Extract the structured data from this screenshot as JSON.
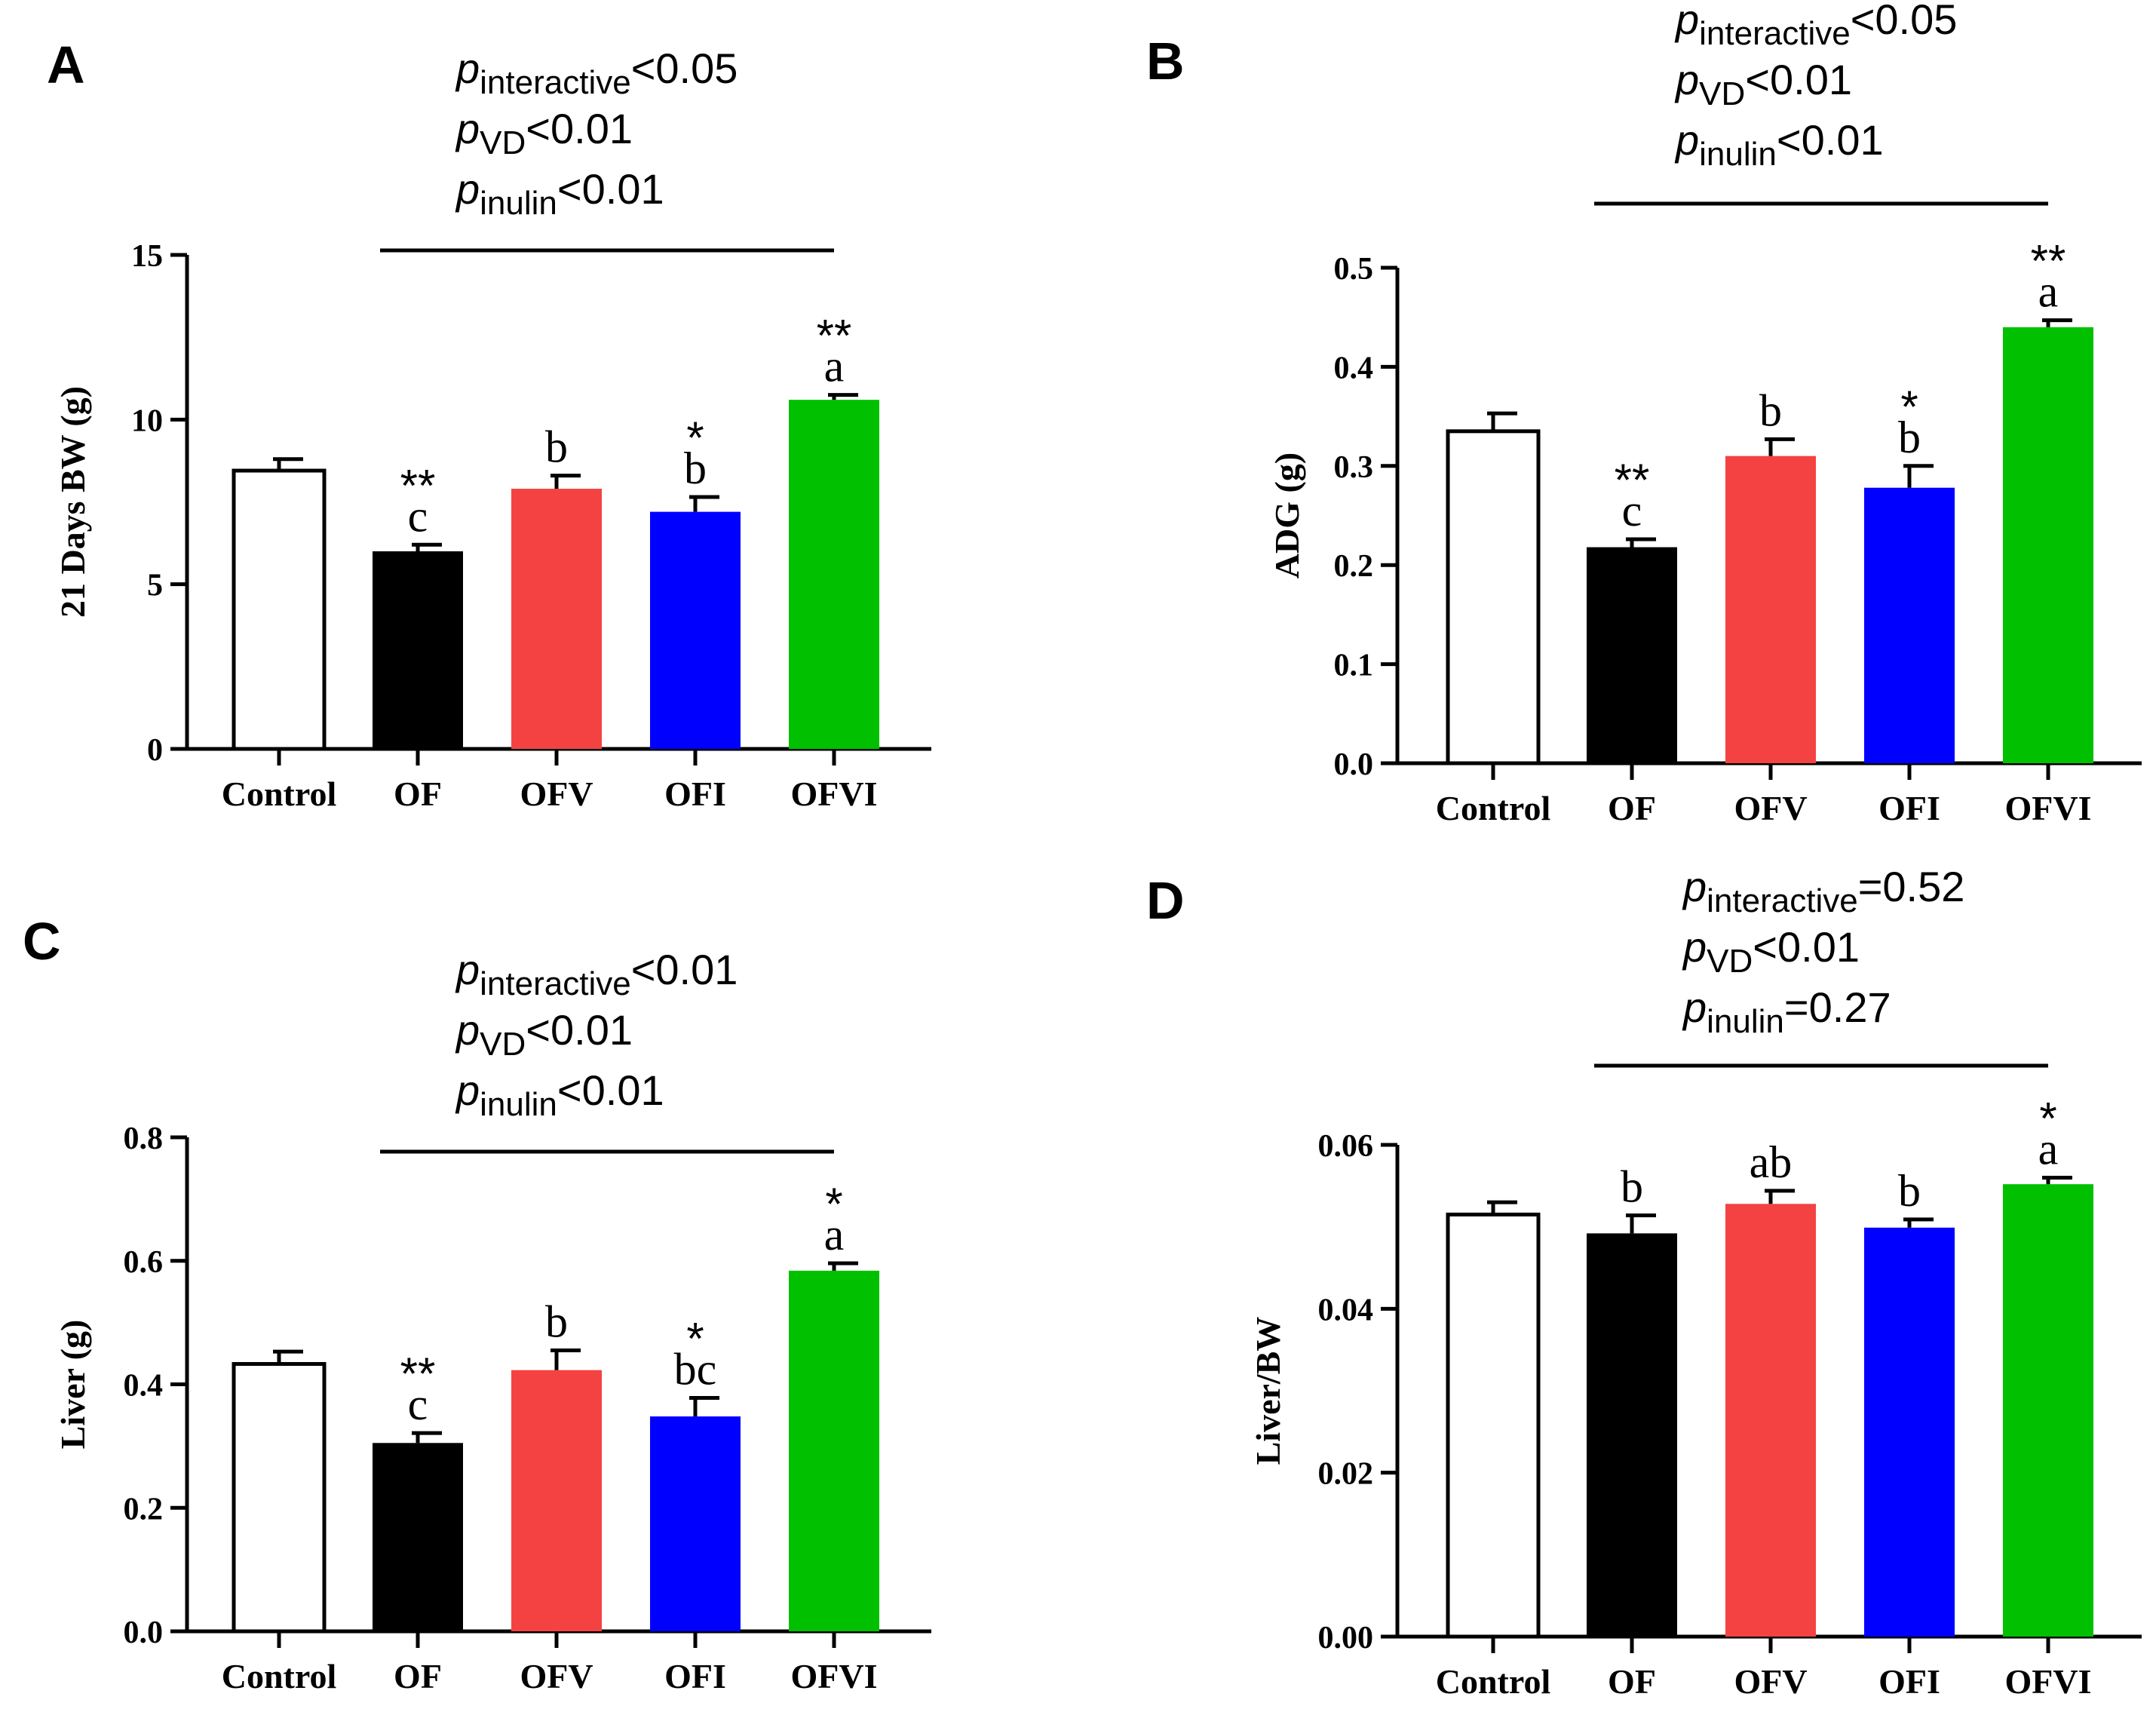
{
  "chart_data": [
    {
      "type": "bar",
      "panel_label": "A",
      "categories": [
        "Control",
        "OF",
        "OFV",
        "OFI",
        "OFVI"
      ],
      "values": [
        8.45,
        6.0,
        7.9,
        7.2,
        10.6
      ],
      "errors": [
        0.35,
        0.2,
        0.4,
        0.45,
        0.15
      ],
      "colors": [
        "#ffffff",
        "#000000",
        "#f44242",
        "#0000ff",
        "#00c000"
      ],
      "letters": [
        "",
        "c",
        "b",
        "b",
        "a"
      ],
      "stars": [
        "",
        "**",
        "",
        "*",
        "**"
      ],
      "ylabel": "21 Days BW (g)",
      "xlabel": "",
      "ylim": [
        0,
        15
      ],
      "yticks": [
        0,
        5,
        10,
        15
      ],
      "ytick_labels": [
        "0",
        "5",
        "10",
        "15"
      ],
      "p_values": [
        {
          "sub": "interactive",
          "rest": "<0.05"
        },
        {
          "sub": "VD",
          "rest": "<0.01"
        },
        {
          "sub": "inulin",
          "rest": "<0.01"
        }
      ],
      "p_symbol": "p",
      "bracket_span": [
        "OF",
        "OFVI"
      ],
      "grid": false
    },
    {
      "type": "bar",
      "panel_label": "B",
      "categories": [
        "Control",
        "OF",
        "OFV",
        "OFI",
        "OFVI"
      ],
      "values": [
        0.335,
        0.218,
        0.31,
        0.278,
        0.44
      ],
      "errors": [
        0.018,
        0.008,
        0.017,
        0.022,
        0.007
      ],
      "colors": [
        "#ffffff",
        "#000000",
        "#f44242",
        "#0000ff",
        "#00c000"
      ],
      "letters": [
        "",
        "c",
        "b",
        "b",
        "a"
      ],
      "stars": [
        "",
        "**",
        "",
        "*",
        "**"
      ],
      "ylabel": "ADG (g)",
      "xlabel": "",
      "ylim": [
        0,
        0.5
      ],
      "yticks": [
        0,
        0.1,
        0.2,
        0.3,
        0.4,
        0.5
      ],
      "ytick_labels": [
        "0.0",
        "0.1",
        "0.2",
        "0.3",
        "0.4",
        "0.5"
      ],
      "p_values": [
        {
          "sub": "interactive",
          "rest": "<0.05"
        },
        {
          "sub": "VD",
          "rest": "<0.01"
        },
        {
          "sub": "inulin",
          "rest": "<0.01"
        }
      ],
      "p_symbol": "p",
      "bracket_span": [
        "OF",
        "OFVI"
      ],
      "grid": false
    },
    {
      "type": "bar",
      "panel_label": "C",
      "categories": [
        "Control",
        "OF",
        "OFV",
        "OFI",
        "OFVI"
      ],
      "values": [
        0.433,
        0.305,
        0.423,
        0.348,
        0.584
      ],
      "errors": [
        0.02,
        0.016,
        0.032,
        0.03,
        0.012
      ],
      "colors": [
        "#ffffff",
        "#000000",
        "#f44242",
        "#0000ff",
        "#00c000"
      ],
      "letters": [
        "",
        "c",
        "b",
        "bc",
        "a"
      ],
      "stars": [
        "",
        "**",
        "",
        "*",
        "*"
      ],
      "ylabel": "Liver (g)",
      "xlabel": "",
      "ylim": [
        0,
        0.8
      ],
      "yticks": [
        0,
        0.2,
        0.4,
        0.6,
        0.8
      ],
      "ytick_labels": [
        "0.0",
        "0.2",
        "0.4",
        "0.6",
        "0.8"
      ],
      "p_values": [
        {
          "sub": "interactive",
          "rest": "<0.01"
        },
        {
          "sub": "VD",
          "rest": "<0.01"
        },
        {
          "sub": "inulin",
          "rest": "<0.01"
        }
      ],
      "p_symbol": "p",
      "bracket_span": [
        "OF",
        "OFVI"
      ],
      "grid": false
    },
    {
      "type": "bar",
      "panel_label": "D",
      "categories": [
        "Control",
        "OF",
        "OFV",
        "OFI",
        "OFVI"
      ],
      "values": [
        0.0515,
        0.0492,
        0.0528,
        0.0499,
        0.0552
      ],
      "errors": [
        0.0015,
        0.0022,
        0.0016,
        0.001,
        0.0008
      ],
      "colors": [
        "#ffffff",
        "#000000",
        "#f44242",
        "#0000ff",
        "#00c000"
      ],
      "letters": [
        "",
        "b",
        "ab",
        "b",
        "a"
      ],
      "stars": [
        "",
        "",
        "",
        "",
        "*"
      ],
      "ylabel": "Liver/BW",
      "xlabel": "",
      "ylim": [
        0,
        0.06
      ],
      "yticks": [
        0,
        0.02,
        0.04,
        0.06
      ],
      "ytick_labels": [
        "0.00",
        "0.02",
        "0.04",
        "0.06"
      ],
      "p_values": [
        {
          "sub": "interactive",
          "rest": "=0.52"
        },
        {
          "sub": "VD",
          "rest": "<0.01"
        },
        {
          "sub": "inulin",
          "rest": "=0.27"
        }
      ],
      "p_symbol": "p",
      "bracket_span": [
        "OF",
        "OFVI"
      ],
      "grid": false
    }
  ]
}
